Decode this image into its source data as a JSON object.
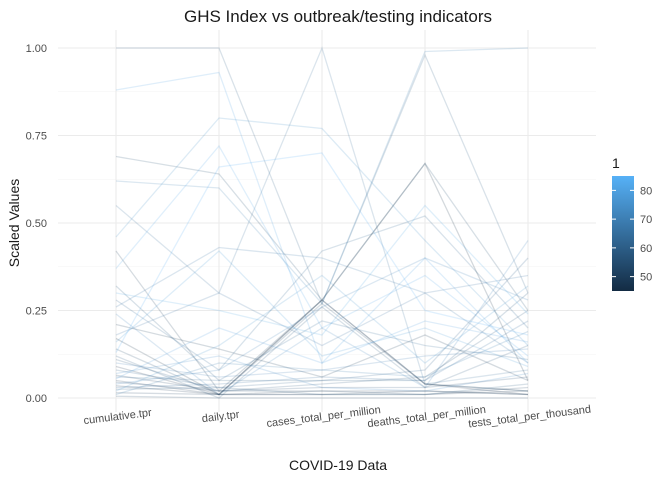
{
  "chart_data": {
    "type": "parallel_coordinates",
    "title": "GHS Index vs outbreak/testing indicators",
    "xlabel": "COVID-19 Data",
    "ylabel": "Scaled Values",
    "categories": [
      "cumulative.tpr",
      "daily.tpr",
      "cases_total_per_million",
      "deaths_total_per_million",
      "tests_total_per_thousand"
    ],
    "ylim": [
      0,
      1
    ],
    "yticks": [
      "0.00",
      "0.25",
      "0.50",
      "0.75",
      "1.00"
    ],
    "grid": true,
    "legend": {
      "title": "1",
      "placement": "right",
      "range": [
        45,
        85
      ],
      "ticks": [
        "40",
        "50",
        "60",
        "70",
        "80"
      ],
      "colors": [
        "#132B43",
        "#56B1F7"
      ]
    },
    "series": [
      {
        "color_value": 60,
        "values": [
          1.0,
          1.0,
          0.27,
          0.98,
          0.3
        ]
      },
      {
        "color_value": 80,
        "values": [
          0.88,
          0.93,
          0.1,
          0.4,
          0.1
        ]
      },
      {
        "color_value": 55,
        "values": [
          0.69,
          0.64,
          0.28,
          0.67,
          0.25
        ]
      },
      {
        "color_value": 70,
        "values": [
          0.62,
          0.6,
          0.27,
          0.99,
          1.0
        ]
      },
      {
        "color_value": 65,
        "values": [
          0.55,
          0.3,
          1.0,
          0.04,
          0.08
        ]
      },
      {
        "color_value": 75,
        "values": [
          0.46,
          0.8,
          0.77,
          0.45,
          0.15
        ]
      },
      {
        "color_value": 50,
        "values": [
          0.42,
          0.02,
          0.28,
          0.04,
          0.02
        ]
      },
      {
        "color_value": 82,
        "values": [
          0.37,
          0.72,
          0.2,
          0.35,
          0.12
        ]
      },
      {
        "color_value": 58,
        "values": [
          0.32,
          0.05,
          0.05,
          0.05,
          0.3
        ]
      },
      {
        "color_value": 62,
        "values": [
          0.28,
          0.08,
          0.42,
          0.52,
          0.2
        ]
      },
      {
        "color_value": 72,
        "values": [
          0.24,
          0.01,
          0.2,
          0.03,
          0.45
        ]
      },
      {
        "color_value": 48,
        "values": [
          0.21,
          0.14,
          0.06,
          0.18,
          0.05
        ]
      },
      {
        "color_value": 66,
        "values": [
          0.18,
          0.3,
          0.15,
          0.3,
          0.35
        ]
      },
      {
        "color_value": 78,
        "values": [
          0.16,
          0.42,
          0.12,
          0.2,
          0.09
        ]
      },
      {
        "color_value": 53,
        "values": [
          0.14,
          0.01,
          0.27,
          0.04,
          0.02
        ]
      },
      {
        "color_value": 84,
        "values": [
          0.13,
          0.66,
          0.7,
          0.25,
          0.18
        ]
      },
      {
        "color_value": 57,
        "values": [
          0.11,
          0.02,
          0.04,
          0.06,
          0.25
        ]
      },
      {
        "color_value": 69,
        "values": [
          0.1,
          0.06,
          0.08,
          0.12,
          0.14
        ]
      },
      {
        "color_value": 46,
        "values": [
          0.09,
          0.01,
          0.28,
          0.04,
          0.01
        ]
      },
      {
        "color_value": 61,
        "values": [
          0.08,
          0.03,
          0.05,
          0.08,
          0.4
        ]
      },
      {
        "color_value": 74,
        "values": [
          0.07,
          0.12,
          0.03,
          0.02,
          0.07
        ]
      },
      {
        "color_value": 52,
        "values": [
          0.065,
          0.02,
          0.02,
          0.01,
          0.03
        ]
      },
      {
        "color_value": 63,
        "values": [
          0.06,
          0.05,
          0.22,
          0.15,
          0.11
        ]
      },
      {
        "color_value": 79,
        "values": [
          0.055,
          0.2,
          0.1,
          0.22,
          0.16
        ]
      },
      {
        "color_value": 49,
        "values": [
          0.05,
          0.01,
          0.01,
          0.01,
          0.02
        ]
      },
      {
        "color_value": 56,
        "values": [
          0.045,
          0.02,
          0.03,
          0.03,
          0.06
        ]
      },
      {
        "color_value": 71,
        "values": [
          0.04,
          0.08,
          0.26,
          0.4,
          0.28
        ]
      },
      {
        "color_value": 47,
        "values": [
          0.035,
          0.01,
          0.02,
          0.02,
          0.01
        ]
      },
      {
        "color_value": 64,
        "values": [
          0.03,
          0.04,
          0.06,
          0.05,
          0.22
        ]
      },
      {
        "color_value": 58,
        "values": [
          0.025,
          0.03,
          0.01,
          0.01,
          0.04
        ]
      },
      {
        "color_value": 76,
        "values": [
          0.02,
          0.15,
          0.35,
          0.1,
          0.32
        ]
      },
      {
        "color_value": 51,
        "values": [
          0.015,
          0.01,
          0.01,
          0.02,
          0.01
        ]
      },
      {
        "color_value": 68,
        "values": [
          0.01,
          0.1,
          0.08,
          0.06,
          0.19
        ]
      },
      {
        "color_value": 54,
        "values": [
          0.005,
          0.0,
          0.0,
          0.0,
          0.0
        ]
      },
      {
        "color_value": 45,
        "values": [
          0.17,
          0.01,
          0.28,
          0.67,
          0.05
        ]
      },
      {
        "color_value": 67,
        "values": [
          0.26,
          0.43,
          0.4,
          0.3,
          0.1
        ]
      },
      {
        "color_value": 81,
        "values": [
          0.3,
          0.25,
          0.18,
          0.55,
          0.24
        ]
      },
      {
        "color_value": 59,
        "values": [
          0.12,
          0.0,
          0.26,
          0.03,
          0.15
        ]
      }
    ]
  }
}
